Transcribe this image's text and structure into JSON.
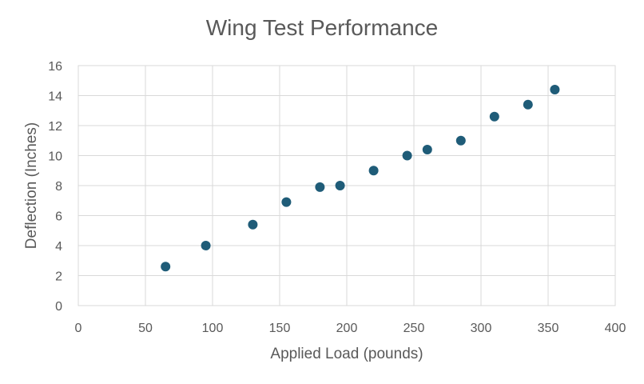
{
  "chart_data": {
    "type": "scatter",
    "title": "Wing Test Performance",
    "xlabel": "Applied Load (pounds)",
    "ylabel": "Deflection (Inches)",
    "xlim": [
      0,
      400
    ],
    "ylim": [
      0,
      16
    ],
    "x_ticks": [
      0,
      50,
      100,
      150,
      200,
      250,
      300,
      350,
      400
    ],
    "y_ticks": [
      0,
      2,
      4,
      6,
      8,
      10,
      12,
      14,
      16
    ],
    "grid": true,
    "legend": "none",
    "marker_color": "#1f5c78",
    "series": [
      {
        "points": [
          {
            "x": 65,
            "y": 2.6
          },
          {
            "x": 95,
            "y": 4.0
          },
          {
            "x": 130,
            "y": 5.4
          },
          {
            "x": 155,
            "y": 6.9
          },
          {
            "x": 180,
            "y": 7.9
          },
          {
            "x": 195,
            "y": 8.0
          },
          {
            "x": 220,
            "y": 9.0
          },
          {
            "x": 245,
            "y": 10.0
          },
          {
            "x": 260,
            "y": 10.4
          },
          {
            "x": 285,
            "y": 11.0
          },
          {
            "x": 310,
            "y": 12.6
          },
          {
            "x": 335,
            "y": 13.4
          },
          {
            "x": 355,
            "y": 14.4
          }
        ]
      }
    ]
  }
}
